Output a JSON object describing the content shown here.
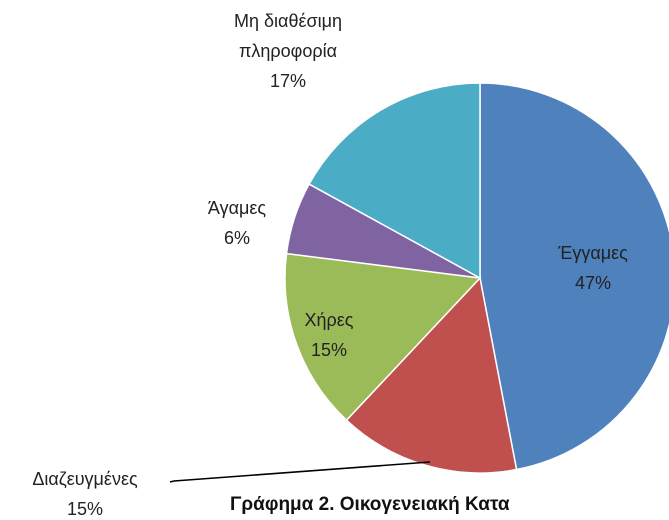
{
  "chart_data": {
    "type": "pie",
    "title": "Γράφημα 2. Οικογενειακή Κατα",
    "categories": [
      "Έγγαμες",
      "Διαζευγμένες",
      "Χήρες",
      "Άγαμες",
      "Μη διαθέσιμη πληροφορία"
    ],
    "values": [
      47,
      15,
      15,
      6,
      17
    ],
    "value_labels": [
      "47%",
      "15%",
      "15%",
      "6%",
      "17%"
    ],
    "colors": [
      "#4f81bd",
      "#c0504d",
      "#9bbb59",
      "#8064a2",
      "#4bacc6"
    ]
  }
}
